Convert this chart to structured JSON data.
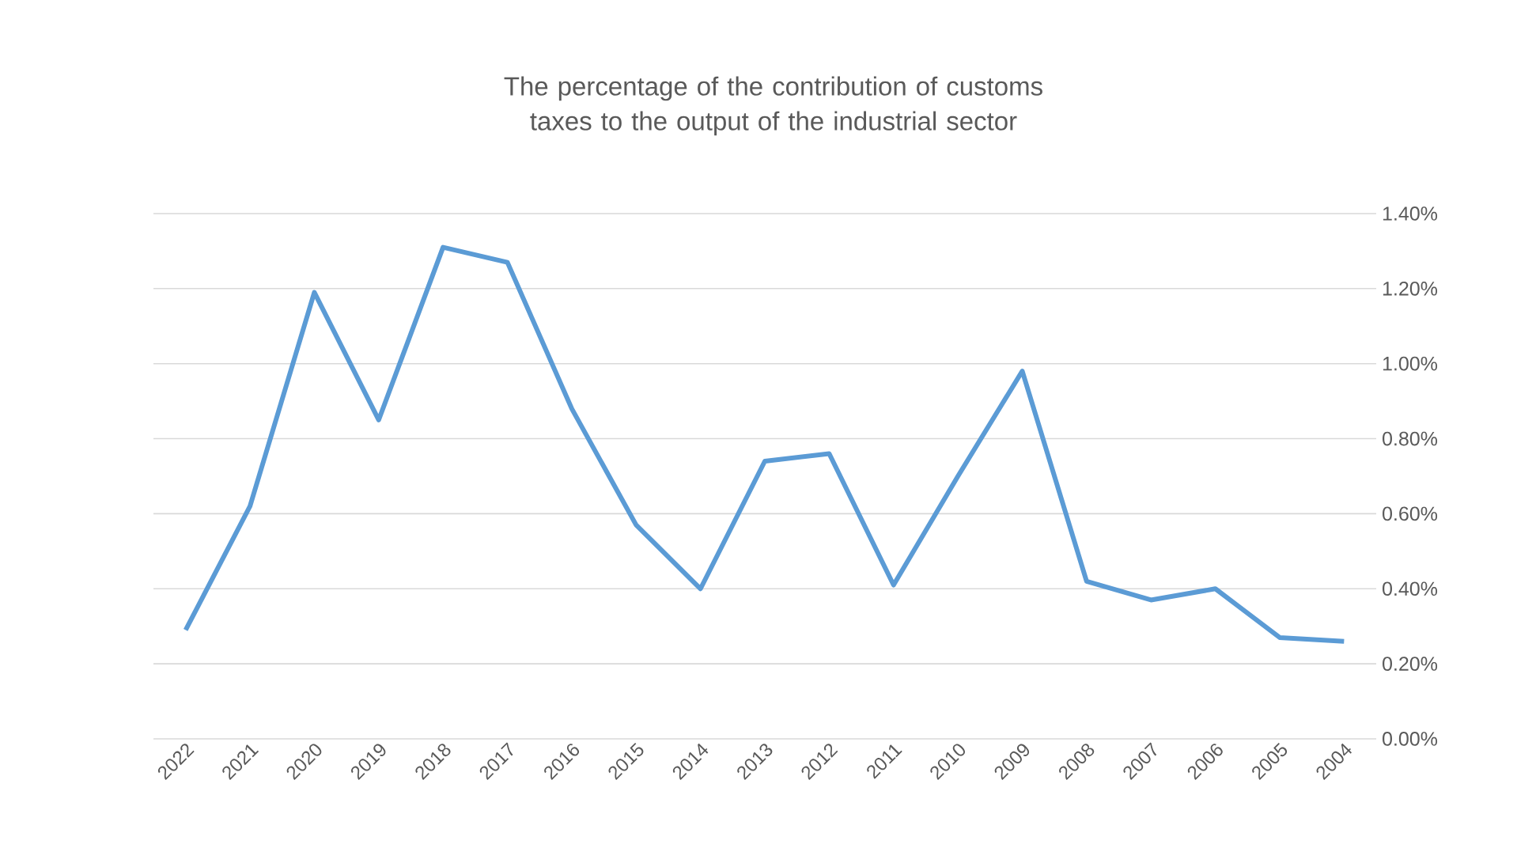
{
  "chart_data": {
    "type": "line",
    "title": "The percentage of the contribution of customs taxes to the output of the industrial sector",
    "categories": [
      "2022",
      "2021",
      "2020",
      "2019",
      "2018",
      "2017",
      "2016",
      "2015",
      "2014",
      "2013",
      "2012",
      "2011",
      "2010",
      "2009",
      "2008",
      "2007",
      "2006",
      "2005",
      "2004"
    ],
    "values": [
      0.29,
      0.62,
      1.19,
      0.85,
      1.31,
      1.27,
      0.88,
      0.57,
      0.4,
      0.74,
      0.76,
      0.41,
      0.7,
      0.98,
      0.42,
      0.37,
      0.4,
      0.27,
      0.26
    ],
    "color": "#5b9bd5",
    "ylim": [
      0,
      1.4
    ],
    "yticks": [
      {
        "value": 0,
        "label": "0.00%"
      },
      {
        "value": 0.2,
        "label": "0.20%"
      },
      {
        "value": 0.4,
        "label": "0.40%"
      },
      {
        "value": 0.6,
        "label": "0.60%"
      },
      {
        "value": 0.8,
        "label": "0.80%"
      },
      {
        "value": 1.0,
        "label": "1.00%"
      },
      {
        "value": 1.2,
        "label": "1.20%"
      },
      {
        "value": 1.4,
        "label": "1.40%"
      }
    ],
    "grid": "y"
  }
}
